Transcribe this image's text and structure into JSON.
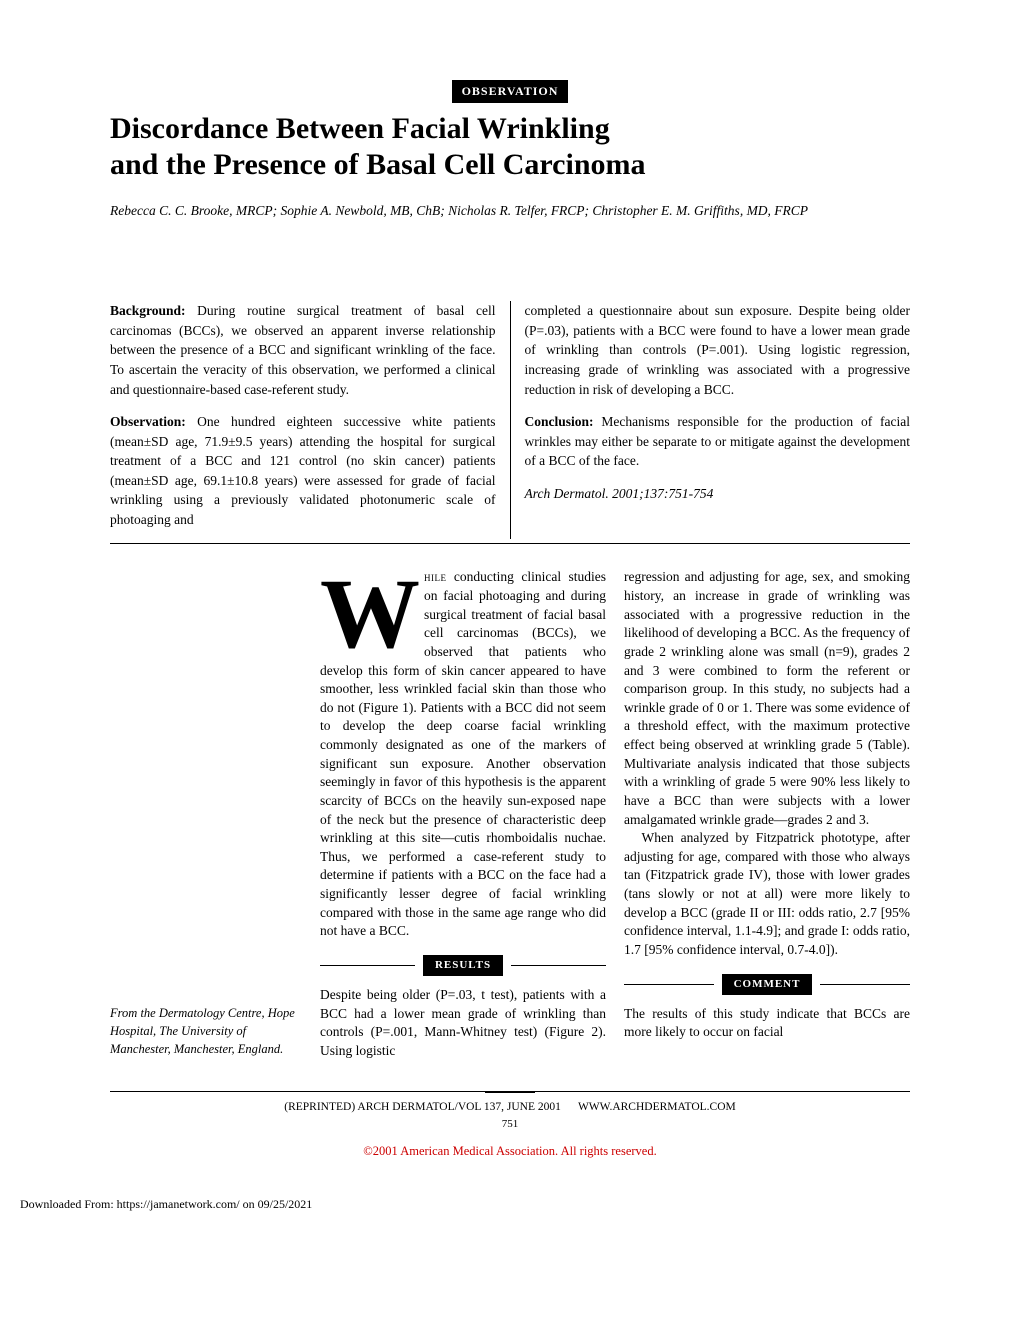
{
  "section_label": "OBSERVATION",
  "title_line1": "Discordance Between Facial Wrinkling",
  "title_line2": "and the Presence of Basal Cell Carcinoma",
  "authors": "Rebecca C. C. Brooke, MRCP; Sophie A. Newbold, MB, ChB; Nicholas R. Telfer, FRCP; Christopher E. M. Griffiths, MD, FRCP",
  "abstract": {
    "background": {
      "label": "Background:",
      "text": " During routine surgical treatment of basal cell carcinomas (BCCs), we observed an apparent inverse relationship between the presence of a BCC and significant wrinkling of the face. To ascertain the veracity of this observation, we performed a clinical and questionnaire-based case-referent study."
    },
    "observation": {
      "label": "Observation:",
      "text": " One hundred eighteen successive white patients (mean±SD age, 71.9±9.5 years) attending the hospital for surgical treatment of a BCC and 121 control (no skin cancer) patients (mean±SD age, 69.1±10.8 years) were assessed for grade of facial wrinkling using a previously validated photonumeric scale of photoaging and"
    },
    "right1": "completed a questionnaire about sun exposure. Despite being older (P=.03), patients with a BCC were found to have a lower mean grade of wrinkling than controls (P=.001). Using logistic regression, increasing grade of wrinkling was associated with a progressive reduction in risk of developing a BCC.",
    "conclusion": {
      "label": "Conclusion:",
      "text": " Mechanisms responsible for the production of facial wrinkles may either be separate to or mitigate against the development of a BCC of the face."
    },
    "citation": "Arch Dermatol. 2001;137:751-754"
  },
  "body": {
    "dropcap": "W",
    "p1_opening": "hile",
    "p1": " conducting clinical studies on facial photoaging and during surgical treatment of facial basal cell carcinomas (BCCs), we observed that patients who develop this form of skin cancer appeared to have smoother, less wrinkled facial skin than those who do not (Figure 1). Patients with a BCC did not seem to develop the deep coarse facial wrinkling commonly designated as one of the markers of significant sun exposure. Another observation seemingly in favor of this hypothesis is the apparent scarcity of BCCs on the heavily sun-exposed nape of the neck but the presence of characteristic deep wrinkling at this site—cutis rhomboidalis nuchae. Thus, we performed a case-referent study to determine if patients with a BCC on the face had a significantly lesser degree of facial wrinkling compared with those in the same age range who did not have a BCC.",
    "results_label": "RESULTS",
    "p2a": "Despite being older (P=.03, t test), patients with a BCC had a lower mean grade of wrinkling than controls (P=.001, Mann-Whitney test) (Figure 2). Using logistic",
    "p2b": "regression and adjusting for age, sex, and smoking history, an increase in grade of wrinkling was associated with a progressive reduction in the likelihood of developing a BCC. As the frequency of grade 2 wrinkling alone was small (n=9), grades 2 and 3 were combined to form the referent or comparison group. In this study, no subjects had a wrinkle grade of 0 or 1. There was some evidence of a threshold effect, with the maximum protective effect being observed at wrinkling grade 5 (Table). Multivariate analysis indicated that those subjects with a wrinkling of grade 5 were 90% less likely to have a BCC than were subjects with a lower amalgamated wrinkle grade—grades 2 and 3.",
    "p3": "When analyzed by Fitzpatrick phototype, after adjusting for age, compared with those who always tan (Fitzpatrick grade IV), those with lower grades (tans slowly or not at all) were more likely to develop a BCC (grade II or III: odds ratio, 2.7 [95% confidence interval, 1.1-4.9]; and grade I: odds ratio, 1.7 [95% confidence interval, 0.7-4.0]).",
    "comment_label": "COMMENT",
    "p4": "The results of this study indicate that BCCs are more likely to occur on facial"
  },
  "affiliation": "From the Dermatology Centre, Hope Hospital, The University of Manchester, Manchester, England.",
  "footer": {
    "reprint": "(REPRINTED) ARCH DERMATOL/VOL 137, JUNE 2001",
    "url": "WWW.ARCHDERMATOL.COM",
    "page": "751",
    "copyright": "©2001 American Medical Association. All rights reserved."
  },
  "download": "Downloaded From: https://jamanetwork.com/ on 09/25/2021"
}
